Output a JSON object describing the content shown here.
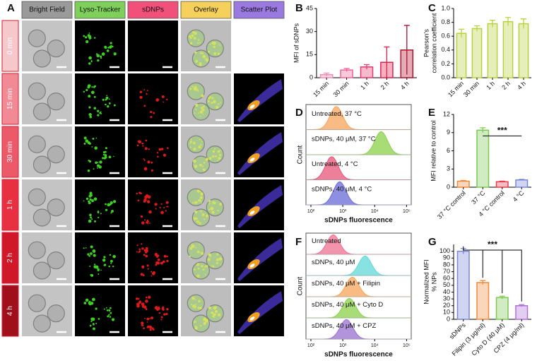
{
  "figure": {
    "panel_labels": [
      "A",
      "B",
      "C",
      "D",
      "E",
      "F",
      "G"
    ]
  },
  "panel_a": {
    "columns": [
      "Bright Field",
      "Lyso-Tracker",
      "sDNPs",
      "Overlay",
      "Scatter Plot"
    ],
    "rows": [
      "0 min",
      "15 min",
      "30 min",
      "1 h",
      "2 h",
      "4 h"
    ]
  },
  "chart_data": [
    {
      "type": "bar",
      "ylabel": [
        "MFI of sDNPs"
      ],
      "categories": [
        "15 min",
        "30 min",
        "1 h",
        "2 h",
        "4 h"
      ],
      "values": [
        2,
        5,
        7,
        10,
        18
      ],
      "errors": [
        1,
        1,
        1.5,
        10,
        16
      ],
      "colors": [
        "#f08cb4",
        "#f06496",
        "#e8386e",
        "#e0204e",
        "#b0102e"
      ],
      "ylim": [
        0,
        45
      ],
      "yticks": [
        0,
        15,
        30,
        45
      ]
    },
    {
      "type": "bar",
      "ylabel": [
        "Pearson's",
        "correlation coefficient"
      ],
      "categories": [
        "15 min",
        "30 min",
        "1 h",
        "2 h",
        "4 h"
      ],
      "values": [
        0.64,
        0.71,
        0.78,
        0.81,
        0.78
      ],
      "errors": [
        0.06,
        0.04,
        0.05,
        0.06,
        0.07
      ],
      "colors": [
        "#b8d23c",
        "#b8d23c",
        "#b8d23c",
        "#b8d23c",
        "#b8d23c"
      ],
      "ylim": [
        0,
        1
      ],
      "yticks": [
        {
          "value": 0,
          "label": "0.0"
        },
        0.2,
        0.4,
        0.6,
        0.8,
        {
          "value": 1,
          "label": "1.0"
        }
      ]
    },
    {
      "type": "ridgeline",
      "xlabel": "sDNPs fluorescence",
      "ylabel": "Count",
      "xscale": "log",
      "xlim": [
        70,
        140000
      ],
      "xticks": [
        {
          "value": 100,
          "label": "10²"
        },
        {
          "value": 1000,
          "label": "10³"
        },
        {
          "value": 10000,
          "label": "10⁴"
        },
        {
          "value": 100000,
          "label": "10⁵"
        }
      ],
      "series": [
        {
          "name": "Untreated, 37 °C",
          "color": "#f5a45a",
          "peak": 630
        },
        {
          "name": "sDNPs, 40 μM, 37 °C",
          "color": "#8ad04a",
          "peak": 16000
        },
        {
          "name": "Untreated, 4 °C",
          "color": "#e85478",
          "peak": 450
        },
        {
          "name": "sDNPs, 40 μM, 4 °C",
          "color": "#6a6ad8",
          "peak": 800
        }
      ]
    },
    {
      "type": "bar",
      "ylabel": [
        "MFI relative to control"
      ],
      "categories": [
        "37 °C control",
        "37 °C",
        "4 °C control",
        "4 °C"
      ],
      "values": [
        1,
        9.4,
        0.9,
        1.2
      ],
      "errors": [
        0.1,
        0.4,
        0.1,
        0.1
      ],
      "colors": [
        "#f08a3c",
        "#7cc850",
        "#e83c50",
        "#7888d8"
      ],
      "ylim": [
        0,
        12
      ],
      "yticks": [
        0,
        3,
        6,
        9,
        12
      ],
      "annotation": "***"
    },
    {
      "type": "ridgeline",
      "xlabel": "sDNPs fluorescence",
      "ylabel": "Count",
      "xscale": "log",
      "xlim": [
        70,
        140000
      ],
      "xticks": [
        {
          "value": 100,
          "label": "10²"
        },
        {
          "value": 1000,
          "label": "10³"
        },
        {
          "value": 10000,
          "label": "10⁴"
        },
        {
          "value": 100000,
          "label": "10⁵"
        }
      ],
      "series": [
        {
          "name": "Untreated",
          "color": "#f07090",
          "peak": 500
        },
        {
          "name": "sDNPs, 40 μM",
          "color": "#60d8d8",
          "peak": 5000
        },
        {
          "name": "sDNPs, 40 μM + Filipin",
          "color": "#f5a45a",
          "peak": 2000
        },
        {
          "name": "sDNPs, 40 μM + Cyto D",
          "color": "#8ad04a",
          "peak": 1600
        },
        {
          "name": "sDNPs, 40 μM + CPZ",
          "color": "#9870d0",
          "peak": 1300
        }
      ]
    },
    {
      "type": "bar",
      "ylabel": [
        "Normalized MFI",
        "% NPs"
      ],
      "categories": [
        "sDNPs",
        "Filipin (3 μg/ml)",
        "Cyto D (40 μM)",
        "CPZ (4 μg/ml)"
      ],
      "values": [
        100,
        54,
        32,
        20
      ],
      "errors": [
        4,
        3,
        2,
        1.5
      ],
      "colors": [
        "#7888d8",
        "#f08a3c",
        "#7cc850",
        "#b070d8"
      ],
      "ylim": [
        0,
        110
      ],
      "yticks": [
        0,
        10,
        20,
        30,
        40,
        50,
        60,
        70,
        80,
        90,
        100
      ],
      "annotation": "***"
    }
  ]
}
